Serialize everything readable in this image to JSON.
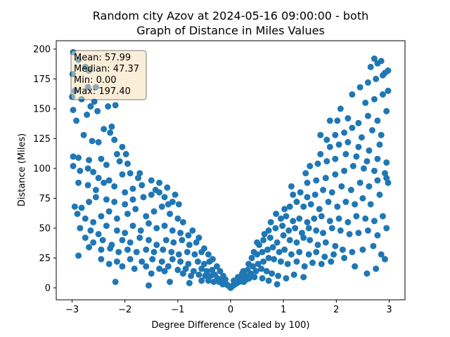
{
  "chart_data": {
    "type": "scatter",
    "title_line1": "Random city Azov at 2024-05-16 09:00:00  - both",
    "title_line2": "Graph of Distance in Miles Values",
    "xlabel": "Degree Difference (Scaled by 100)",
    "ylabel": "Distance (Miles)",
    "xlim": [
      -3.3,
      3.3
    ],
    "ylim": [
      -10,
      207
    ],
    "xticks": [
      -3,
      -2,
      -1,
      0,
      1,
      2,
      3
    ],
    "xtick_labels": [
      "−3",
      "−2",
      "−1",
      "0",
      "1",
      "2",
      "3"
    ],
    "yticks": [
      0,
      25,
      50,
      75,
      100,
      125,
      150,
      175,
      200
    ],
    "ytick_labels": [
      "0",
      "25",
      "50",
      "75",
      "100",
      "125",
      "150",
      "175",
      "200"
    ],
    "marker_color": "#1f77b4",
    "stats_box": {
      "mean": "Mean: 57.99",
      "median": "Median: 47.37",
      "min": "Min: 0.00",
      "max": "Max: 197.40",
      "background": "#f5deb3"
    },
    "points": [
      [
        -2.98,
        197.4
      ],
      [
        -2.88,
        191
      ],
      [
        -2.75,
        185
      ],
      [
        -2.68,
        182
      ],
      [
        -2.55,
        168
      ],
      [
        -2.7,
        168
      ],
      [
        -2.99,
        179
      ],
      [
        -3.0,
        160
      ],
      [
        -2.95,
        165
      ],
      [
        -2.82,
        158
      ],
      [
        -2.65,
        152
      ],
      [
        -2.58,
        156
      ],
      [
        -2.72,
        145
      ],
      [
        -2.52,
        148
      ],
      [
        -2.32,
        152
      ],
      [
        -2.18,
        153
      ],
      [
        -2.98,
        149
      ],
      [
        -2.92,
        140
      ],
      [
        -2.4,
        133
      ],
      [
        -2.28,
        130
      ],
      [
        -2.78,
        128
      ],
      [
        -2.62,
        123
      ],
      [
        -2.5,
        122
      ],
      [
        -2.2,
        124
      ],
      [
        -2.05,
        118
      ],
      [
        -2.15,
        112
      ],
      [
        -2.98,
        110
      ],
      [
        -2.88,
        109
      ],
      [
        -2.68,
        107
      ],
      [
        -2.45,
        108
      ],
      [
        -2.35,
        103
      ],
      [
        -2.1,
        106
      ],
      [
        -1.95,
        104
      ],
      [
        -2.98,
        102
      ],
      [
        -2.85,
        98
      ],
      [
        -2.7,
        100
      ],
      [
        -2.6,
        97
      ],
      [
        -2.5,
        92
      ],
      [
        -2.3,
        90
      ],
      [
        -2.05,
        95
      ],
      [
        -1.9,
        96
      ],
      [
        -1.75,
        92
      ],
      [
        -2.88,
        88
      ],
      [
        -2.7,
        86
      ],
      [
        -2.55,
        82
      ],
      [
        -2.4,
        88
      ],
      [
        -2.2,
        85
      ],
      [
        -2.0,
        80
      ],
      [
        -1.85,
        83
      ],
      [
        -1.68,
        86
      ],
      [
        -1.5,
        90
      ],
      [
        -1.35,
        88
      ],
      [
        -1.2,
        84
      ],
      [
        -1.05,
        78
      ],
      [
        -2.95,
        68
      ],
      [
        -2.82,
        67
      ],
      [
        -2.68,
        72
      ],
      [
        -2.55,
        76
      ],
      [
        -2.35,
        74
      ],
      [
        -2.2,
        72
      ],
      [
        -2.0,
        70
      ],
      [
        -1.85,
        74
      ],
      [
        -1.65,
        76
      ],
      [
        -1.5,
        78
      ],
      [
        -1.35,
        80
      ],
      [
        -1.25,
        76
      ],
      [
        -1.1,
        72
      ],
      [
        -0.98,
        70
      ],
      [
        -2.9,
        62
      ],
      [
        -2.75,
        58
      ],
      [
        -2.6,
        55
      ],
      [
        -2.45,
        60
      ],
      [
        -2.3,
        64
      ],
      [
        -2.15,
        58
      ],
      [
        -1.95,
        62
      ],
      [
        -1.8,
        66
      ],
      [
        -1.6,
        60
      ],
      [
        -1.45,
        64
      ],
      [
        -1.3,
        68
      ],
      [
        -1.15,
        62
      ],
      [
        -1.0,
        58
      ],
      [
        -0.9,
        55
      ],
      [
        -2.85,
        50
      ],
      [
        -2.65,
        48
      ],
      [
        -2.5,
        45
      ],
      [
        -2.35,
        52
      ],
      [
        -2.15,
        48
      ],
      [
        -2.0,
        46
      ],
      [
        -1.85,
        52
      ],
      [
        -1.7,
        48
      ],
      [
        -1.55,
        54
      ],
      [
        -1.4,
        50
      ],
      [
        -1.25,
        52
      ],
      [
        -1.1,
        48
      ],
      [
        -0.95,
        46
      ],
      [
        -0.8,
        44
      ],
      [
        -2.75,
        42
      ],
      [
        -2.6,
        38
      ],
      [
        -2.42,
        40
      ],
      [
        -2.25,
        36
      ],
      [
        -2.05,
        40
      ],
      [
        -1.9,
        38
      ],
      [
        -1.72,
        42
      ],
      [
        -1.55,
        40
      ],
      [
        -1.4,
        36
      ],
      [
        -1.22,
        40
      ],
      [
        -1.08,
        38
      ],
      [
        -0.92,
        40
      ],
      [
        -0.78,
        36
      ],
      [
        -0.65,
        38
      ],
      [
        -2.68,
        34
      ],
      [
        -2.45,
        32
      ],
      [
        -2.28,
        33
      ],
      [
        -2.12,
        30
      ],
      [
        -1.95,
        32
      ],
      [
        -1.78,
        30
      ],
      [
        -1.6,
        32
      ],
      [
        -1.45,
        30
      ],
      [
        -1.28,
        32
      ],
      [
        -1.12,
        30
      ],
      [
        -0.98,
        28
      ],
      [
        -0.82,
        30
      ],
      [
        -0.68,
        28
      ],
      [
        -0.55,
        30
      ],
      [
        -2.88,
        27
      ],
      [
        -2.45,
        24
      ],
      [
        -2.15,
        22
      ],
      [
        -1.9,
        24
      ],
      [
        -1.68,
        22
      ],
      [
        -1.48,
        24
      ],
      [
        -1.3,
        22
      ],
      [
        -1.1,
        24
      ],
      [
        -0.95,
        22
      ],
      [
        -0.8,
        20
      ],
      [
        -0.62,
        22
      ],
      [
        -0.5,
        20
      ],
      [
        -0.4,
        22
      ],
      [
        -2.3,
        20
      ],
      [
        -2.05,
        18
      ],
      [
        -1.82,
        16
      ],
      [
        -1.6,
        18
      ],
      [
        -1.35,
        16
      ],
      [
        -1.18,
        18
      ],
      [
        -1.0,
        15
      ],
      [
        -0.85,
        16
      ],
      [
        -0.7,
        14
      ],
      [
        -0.55,
        16
      ],
      [
        -0.45,
        14
      ],
      [
        -0.35,
        15
      ],
      [
        -1.5,
        12
      ],
      [
        -1.25,
        14
      ],
      [
        -0.9,
        12
      ],
      [
        -0.75,
        10
      ],
      [
        -0.6,
        11
      ],
      [
        -0.48,
        10
      ],
      [
        -0.38,
        10
      ],
      [
        -0.3,
        11
      ],
      [
        -0.25,
        8
      ],
      [
        -2.18,
        5
      ],
      [
        -1.55,
        2
      ],
      [
        -1.15,
        5
      ],
      [
        -0.78,
        4
      ],
      [
        -0.55,
        6
      ],
      [
        -0.42,
        6
      ],
      [
        -0.32,
        5
      ],
      [
        -0.22,
        5
      ],
      [
        -0.18,
        6
      ],
      [
        -0.12,
        4
      ],
      [
        -0.08,
        3
      ],
      [
        -0.05,
        2
      ],
      [
        -0.02,
        1
      ],
      [
        0.0,
        0.0
      ],
      [
        0.02,
        1
      ],
      [
        0.05,
        2
      ],
      [
        0.08,
        3
      ],
      [
        0.12,
        4
      ],
      [
        0.16,
        5
      ],
      [
        0.2,
        6
      ],
      [
        0.25,
        5
      ],
      [
        0.3,
        7
      ],
      [
        0.35,
        8
      ],
      [
        0.45,
        9
      ],
      [
        0.6,
        8
      ],
      [
        0.72,
        6
      ],
      [
        0.88,
        3
      ],
      [
        -0.15,
        3
      ],
      [
        0.1,
        5
      ],
      [
        0.18,
        8
      ],
      [
        0.28,
        10
      ],
      [
        0.38,
        12
      ],
      [
        0.48,
        14
      ],
      [
        0.58,
        16
      ],
      [
        0.68,
        14
      ],
      [
        0.78,
        12
      ],
      [
        0.9,
        10
      ],
      [
        1.05,
        8
      ],
      [
        1.2,
        11
      ],
      [
        1.38,
        9
      ],
      [
        0.22,
        12
      ],
      [
        0.32,
        15
      ],
      [
        0.42,
        18
      ],
      [
        0.52,
        20
      ],
      [
        0.62,
        22
      ],
      [
        0.72,
        25
      ],
      [
        0.82,
        24
      ],
      [
        0.95,
        22
      ],
      [
        1.08,
        20
      ],
      [
        1.25,
        22
      ],
      [
        1.4,
        18
      ],
      [
        1.55,
        21
      ],
      [
        1.72,
        20
      ],
      [
        1.9,
        22
      ],
      [
        0.4,
        25
      ],
      [
        0.5,
        28
      ],
      [
        0.6,
        30
      ],
      [
        0.7,
        32
      ],
      [
        0.8,
        34
      ],
      [
        0.92,
        30
      ],
      [
        1.02,
        32
      ],
      [
        1.15,
        28
      ],
      [
        1.3,
        30
      ],
      [
        1.48,
        28
      ],
      [
        1.62,
        30
      ],
      [
        1.78,
        26
      ],
      [
        1.95,
        28
      ],
      [
        2.15,
        25
      ],
      [
        2.35,
        18
      ],
      [
        2.58,
        12
      ],
      [
        2.75,
        16
      ],
      [
        2.92,
        24
      ],
      [
        0.5,
        38
      ],
      [
        0.62,
        40
      ],
      [
        0.75,
        42
      ],
      [
        0.88,
        38
      ],
      [
        1.0,
        44
      ],
      [
        1.12,
        40
      ],
      [
        1.25,
        38
      ],
      [
        1.38,
        42
      ],
      [
        1.5,
        40
      ],
      [
        1.65,
        36
      ],
      [
        1.8,
        38
      ],
      [
        1.98,
        35
      ],
      [
        2.12,
        32
      ],
      [
        2.3,
        30
      ],
      [
        2.5,
        32
      ],
      [
        2.7,
        35
      ],
      [
        2.85,
        28
      ],
      [
        0.72,
        48
      ],
      [
        0.85,
        50
      ],
      [
        0.98,
        52
      ],
      [
        1.1,
        48
      ],
      [
        1.22,
        50
      ],
      [
        1.35,
        46
      ],
      [
        1.48,
        50
      ],
      [
        1.62,
        48
      ],
      [
        1.75,
        46
      ],
      [
        1.92,
        50
      ],
      [
        2.08,
        48
      ],
      [
        2.25,
        45
      ],
      [
        2.42,
        46
      ],
      [
        2.6,
        48
      ],
      [
        2.78,
        44
      ],
      [
        2.95,
        50
      ],
      [
        0.95,
        58
      ],
      [
        1.05,
        60
      ],
      [
        1.18,
        56
      ],
      [
        1.3,
        58
      ],
      [
        1.45,
        55
      ],
      [
        1.58,
        58
      ],
      [
        1.72,
        60
      ],
      [
        1.88,
        56
      ],
      [
        2.05,
        58
      ],
      [
        2.22,
        55
      ],
      [
        2.38,
        60
      ],
      [
        2.55,
        58
      ],
      [
        2.72,
        56
      ],
      [
        2.88,
        60
      ],
      [
        1.02,
        66
      ],
      [
        1.12,
        68
      ],
      [
        1.25,
        72
      ],
      [
        1.38,
        68
      ],
      [
        1.52,
        70
      ],
      [
        1.68,
        66
      ],
      [
        1.85,
        72
      ],
      [
        2.02,
        68
      ],
      [
        2.18,
        72
      ],
      [
        2.35,
        70
      ],
      [
        2.5,
        75
      ],
      [
        2.65,
        70
      ],
      [
        2.82,
        78
      ],
      [
        2.98,
        88
      ],
      [
        1.18,
        78
      ],
      [
        1.32,
        80
      ],
      [
        1.45,
        76
      ],
      [
        1.6,
        78
      ],
      [
        1.75,
        82
      ],
      [
        1.92,
        80
      ],
      [
        2.1,
        85
      ],
      [
        2.28,
        82
      ],
      [
        2.45,
        88
      ],
      [
        2.62,
        85
      ],
      [
        2.78,
        90
      ],
      [
        2.95,
        92
      ],
      [
        1.45,
        88
      ],
      [
        1.62,
        90
      ],
      [
        1.8,
        92
      ],
      [
        1.98,
        95
      ],
      [
        2.15,
        98
      ],
      [
        2.32,
        102
      ],
      [
        2.52,
        100
      ],
      [
        2.72,
        98
      ],
      [
        2.92,
        96
      ],
      [
        1.5,
        102
      ],
      [
        1.65,
        104
      ],
      [
        1.82,
        106
      ],
      [
        1.98,
        108
      ],
      [
        2.18,
        112
      ],
      [
        2.38,
        110
      ],
      [
        2.58,
        106
      ],
      [
        2.78,
        108
      ],
      [
        2.95,
        105
      ],
      [
        1.7,
        112
      ],
      [
        1.88,
        118
      ],
      [
        2.05,
        120
      ],
      [
        2.22,
        122
      ],
      [
        2.42,
        118
      ],
      [
        2.62,
        115
      ],
      [
        2.82,
        120
      ],
      [
        1.82,
        124
      ],
      [
        1.98,
        128
      ],
      [
        2.15,
        130
      ],
      [
        2.3,
        134
      ],
      [
        2.48,
        126
      ],
      [
        2.68,
        132
      ],
      [
        2.85,
        128
      ],
      [
        2.02,
        140
      ],
      [
        2.22,
        142
      ],
      [
        2.42,
        138
      ],
      [
        2.6,
        144
      ],
      [
        2.78,
        140
      ],
      [
        2.95,
        148
      ],
      [
        2.55,
        155
      ],
      [
        2.72,
        158
      ],
      [
        2.88,
        162
      ],
      [
        2.98,
        165
      ],
      [
        2.45,
        168
      ],
      [
        2.6,
        172
      ],
      [
        2.75,
        175
      ],
      [
        2.88,
        178
      ],
      [
        2.98,
        182
      ],
      [
        2.65,
        185
      ],
      [
        2.78,
        188
      ],
      [
        2.85,
        190
      ],
      [
        2.92,
        180
      ],
      [
        2.72,
        192
      ],
      [
        -2.25,
        135
      ],
      [
        -1.98,
        112
      ],
      [
        -1.72,
        96
      ],
      [
        -1.42,
        82
      ],
      [
        -1.18,
        70
      ],
      [
        -0.72,
        48
      ],
      [
        -0.6,
        42
      ],
      [
        -0.5,
        33
      ],
      [
        -0.42,
        28
      ],
      [
        -0.34,
        24
      ],
      [
        -0.26,
        18
      ],
      [
        -0.2,
        14
      ],
      [
        -0.14,
        10
      ],
      [
        -0.1,
        7
      ],
      [
        0.06,
        6
      ],
      [
        0.14,
        9
      ],
      [
        0.24,
        14
      ],
      [
        0.34,
        20
      ],
      [
        0.44,
        30
      ],
      [
        0.54,
        36
      ],
      [
        0.64,
        45
      ],
      [
        0.76,
        55
      ],
      [
        0.86,
        62
      ],
      [
        1.15,
        85
      ],
      [
        1.42,
        96
      ],
      [
        1.7,
        128
      ],
      [
        1.88,
        140
      ],
      [
        2.08,
        150
      ],
      [
        2.3,
        162
      ]
    ]
  }
}
